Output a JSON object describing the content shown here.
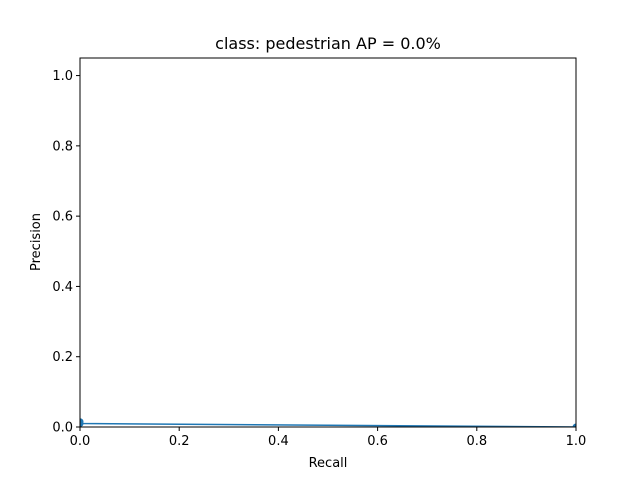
{
  "chart_data": {
    "type": "line",
    "title": "class: pedestrian AP = 0.0%",
    "xlabel": "Recall",
    "ylabel": "Precision",
    "xlim": [
      0.0,
      1.0
    ],
    "ylim": [
      0.0,
      1.05
    ],
    "xticks": [
      0.0,
      0.2,
      0.4,
      0.6,
      0.8,
      1.0
    ],
    "xtick_labels": [
      "0.0",
      "0.2",
      "0.4",
      "0.6",
      "0.8",
      "1.0"
    ],
    "yticks": [
      0.0,
      0.2,
      0.4,
      0.6,
      0.8,
      1.0
    ],
    "ytick_labels": [
      "0.0",
      "0.2",
      "0.4",
      "0.6",
      "0.8",
      "1.0"
    ],
    "grid": false,
    "legend": "none",
    "series": [
      {
        "color": "#1f77b4",
        "marker": "circle",
        "x": [
          0.0,
          0.0,
          1.0
        ],
        "y": [
          0.015,
          0.01,
          0.0
        ]
      }
    ]
  }
}
